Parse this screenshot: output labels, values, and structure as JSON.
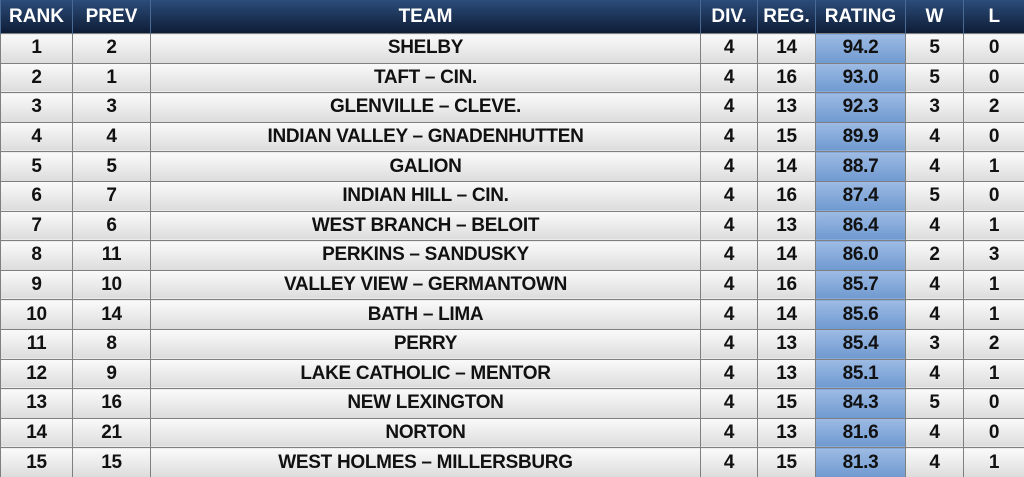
{
  "table": {
    "headers": [
      "RANK",
      "PREV",
      "TEAM",
      "DIV.",
      "REG.",
      "RATING",
      "W",
      "L"
    ],
    "rows": [
      [
        "1",
        "2",
        "SHELBY",
        "4",
        "14",
        "94.2",
        "5",
        "0"
      ],
      [
        "2",
        "1",
        "TAFT – CIN.",
        "4",
        "16",
        "93.0",
        "5",
        "0"
      ],
      [
        "3",
        "3",
        "GLENVILLE – CLEVE.",
        "4",
        "13",
        "92.3",
        "3",
        "2"
      ],
      [
        "4",
        "4",
        "INDIAN VALLEY – GNADENHUTTEN",
        "4",
        "15",
        "89.9",
        "4",
        "0"
      ],
      [
        "5",
        "5",
        "GALION",
        "4",
        "14",
        "88.7",
        "4",
        "1"
      ],
      [
        "6",
        "7",
        "INDIAN HILL – CIN.",
        "4",
        "16",
        "87.4",
        "5",
        "0"
      ],
      [
        "7",
        "6",
        "WEST BRANCH – BELOIT",
        "4",
        "13",
        "86.4",
        "4",
        "1"
      ],
      [
        "8",
        "11",
        "PERKINS – SANDUSKY",
        "4",
        "14",
        "86.0",
        "2",
        "3"
      ],
      [
        "9",
        "10",
        "VALLEY VIEW – GERMANTOWN",
        "4",
        "16",
        "85.7",
        "4",
        "1"
      ],
      [
        "10",
        "14",
        "BATH – LIMA",
        "4",
        "14",
        "85.6",
        "4",
        "1"
      ],
      [
        "11",
        "8",
        "PERRY",
        "4",
        "13",
        "85.4",
        "3",
        "2"
      ],
      [
        "12",
        "9",
        "LAKE CATHOLIC – MENTOR",
        "4",
        "13",
        "85.1",
        "4",
        "1"
      ],
      [
        "13",
        "16",
        "NEW LEXINGTON",
        "4",
        "15",
        "84.3",
        "5",
        "0"
      ],
      [
        "14",
        "21",
        "NORTON",
        "4",
        "13",
        "81.6",
        "4",
        "0"
      ],
      [
        "15",
        "15",
        "WEST HOLMES – MILLERSBURG",
        "4",
        "15",
        "81.3",
        "4",
        "1"
      ]
    ]
  }
}
